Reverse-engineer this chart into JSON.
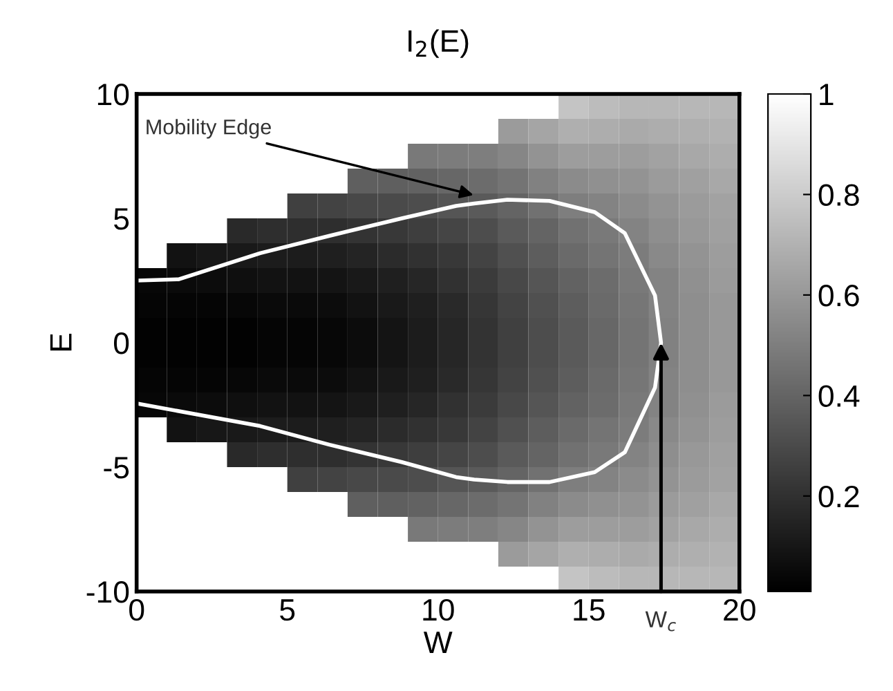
{
  "chart_data": {
    "type": "heatmap",
    "title": "I$_{2}$(E)",
    "xlabel": "W",
    "ylabel": "E",
    "x": [
      0.5,
      1.5,
      2.5,
      3.5,
      4.5,
      5.5,
      6.5,
      7.5,
      8.5,
      9.5,
      10.5,
      11.5,
      12.5,
      13.5,
      14.5,
      15.5,
      16.5,
      17.5,
      18.5,
      19.5
    ],
    "y": [
      9.5,
      8.5,
      7.5,
      6.5,
      5.5,
      4.5,
      3.5,
      2.5,
      1.5,
      0.5,
      -0.5,
      -1.5,
      -2.5,
      -3.5,
      -4.5,
      -5.5,
      -6.5,
      -7.5,
      -8.5,
      -9.5
    ],
    "xlim": [
      0,
      20
    ],
    "ylim": [
      -10,
      10
    ],
    "xticks": [
      0,
      5,
      10,
      15,
      20
    ],
    "yticks": [
      -10,
      -5,
      0,
      5,
      10
    ],
    "clim": [
      0.01,
      1
    ],
    "cticks": [
      0.2,
      0.4,
      0.6,
      0.8,
      1
    ],
    "cells": [
      [
        null,
        null,
        null,
        null,
        null,
        null,
        null,
        null,
        null,
        null,
        null,
        null,
        null,
        null,
        0.77,
        0.74,
        0.72,
        0.72,
        0.72,
        0.72
      ],
      [
        null,
        null,
        null,
        null,
        null,
        null,
        null,
        null,
        null,
        null,
        null,
        null,
        0.61,
        0.65,
        0.69,
        0.68,
        0.67,
        0.68,
        0.69,
        0.7
      ],
      [
        null,
        null,
        null,
        null,
        null,
        null,
        null,
        null,
        null,
        0.48,
        0.49,
        0.5,
        0.53,
        0.58,
        0.62,
        0.62,
        0.62,
        0.64,
        0.66,
        0.68
      ],
      [
        null,
        null,
        null,
        null,
        null,
        null,
        null,
        0.38,
        0.38,
        0.39,
        0.41,
        0.43,
        0.46,
        0.51,
        0.55,
        0.57,
        0.58,
        0.61,
        0.63,
        0.66
      ],
      [
        null,
        null,
        null,
        null,
        null,
        0.26,
        0.27,
        0.29,
        0.3,
        0.31,
        0.34,
        0.36,
        0.4,
        0.45,
        0.5,
        0.52,
        0.55,
        0.58,
        0.61,
        0.64
      ],
      [
        null,
        null,
        null,
        0.17,
        0.19,
        0.19,
        0.19,
        0.21,
        0.23,
        0.25,
        0.28,
        0.31,
        0.36,
        0.4,
        0.45,
        0.48,
        0.52,
        0.56,
        0.6,
        0.63
      ],
      [
        null,
        0.08,
        0.1,
        0.11,
        0.12,
        0.12,
        0.13,
        0.15,
        0.18,
        0.2,
        0.23,
        0.27,
        0.32,
        0.37,
        0.42,
        0.46,
        0.49,
        0.54,
        0.58,
        0.62
      ],
      [
        0.04,
        0.05,
        0.06,
        0.07,
        0.08,
        0.08,
        0.09,
        0.11,
        0.13,
        0.16,
        0.2,
        0.24,
        0.29,
        0.34,
        0.39,
        0.43,
        0.48,
        0.52,
        0.57,
        0.61
      ],
      [
        0.03,
        0.03,
        0.03,
        0.04,
        0.05,
        0.05,
        0.06,
        0.08,
        0.11,
        0.13,
        0.17,
        0.22,
        0.27,
        0.32,
        0.37,
        0.42,
        0.47,
        0.52,
        0.56,
        0.6
      ],
      [
        0.02,
        0.02,
        0.02,
        0.02,
        0.03,
        0.03,
        0.04,
        0.06,
        0.09,
        0.12,
        0.16,
        0.21,
        0.26,
        0.31,
        0.36,
        0.41,
        0.46,
        0.51,
        0.56,
        0.6
      ],
      [
        0.02,
        0.02,
        0.02,
        0.02,
        0.03,
        0.03,
        0.04,
        0.06,
        0.09,
        0.12,
        0.16,
        0.21,
        0.26,
        0.31,
        0.36,
        0.41,
        0.46,
        0.51,
        0.56,
        0.6
      ],
      [
        0.03,
        0.03,
        0.03,
        0.04,
        0.05,
        0.05,
        0.06,
        0.08,
        0.11,
        0.13,
        0.17,
        0.22,
        0.27,
        0.32,
        0.37,
        0.42,
        0.47,
        0.52,
        0.56,
        0.6
      ],
      [
        0.04,
        0.05,
        0.06,
        0.07,
        0.08,
        0.08,
        0.09,
        0.11,
        0.13,
        0.16,
        0.2,
        0.24,
        0.29,
        0.34,
        0.39,
        0.43,
        0.48,
        0.52,
        0.57,
        0.61
      ],
      [
        null,
        0.08,
        0.1,
        0.11,
        0.12,
        0.12,
        0.13,
        0.15,
        0.18,
        0.2,
        0.23,
        0.27,
        0.32,
        0.37,
        0.42,
        0.46,
        0.49,
        0.54,
        0.58,
        0.62
      ],
      [
        null,
        null,
        null,
        0.17,
        0.19,
        0.19,
        0.19,
        0.21,
        0.23,
        0.25,
        0.28,
        0.31,
        0.36,
        0.4,
        0.45,
        0.48,
        0.52,
        0.56,
        0.6,
        0.63
      ],
      [
        null,
        null,
        null,
        null,
        null,
        0.26,
        0.27,
        0.29,
        0.3,
        0.31,
        0.34,
        0.36,
        0.4,
        0.45,
        0.5,
        0.52,
        0.55,
        0.58,
        0.61,
        0.64
      ],
      [
        null,
        null,
        null,
        null,
        null,
        null,
        null,
        0.38,
        0.38,
        0.39,
        0.41,
        0.43,
        0.46,
        0.51,
        0.55,
        0.57,
        0.58,
        0.61,
        0.63,
        0.66
      ],
      [
        null,
        null,
        null,
        null,
        null,
        null,
        null,
        null,
        null,
        0.48,
        0.49,
        0.5,
        0.53,
        0.58,
        0.62,
        0.62,
        0.62,
        0.64,
        0.66,
        0.68
      ],
      [
        null,
        null,
        null,
        null,
        null,
        null,
        null,
        null,
        null,
        null,
        null,
        null,
        0.61,
        0.65,
        0.69,
        0.68,
        0.67,
        0.68,
        0.69,
        0.7
      ],
      [
        null,
        null,
        null,
        null,
        null,
        null,
        null,
        null,
        null,
        null,
        null,
        null,
        null,
        null,
        0.77,
        0.74,
        0.72,
        0.72,
        0.72,
        0.72
      ]
    ],
    "series": [
      {
        "type": "line",
        "color": "#ffffff",
        "x": [
          0.05,
          1.4,
          4.1,
          6.4,
          8.8,
          10.6,
          11.2,
          12.3,
          13.7,
          15.2,
          16.2,
          17.2,
          17.4,
          17.2,
          16.2,
          15.2,
          13.7,
          12.3,
          11.2,
          10.6,
          8.8,
          6.4,
          4.1,
          0.05
        ],
        "values": [
          2.5,
          2.55,
          3.6,
          4.3,
          5.0,
          5.5,
          5.6,
          5.75,
          5.7,
          5.25,
          4.4,
          1.9,
          0,
          -1.8,
          -4.4,
          -5.2,
          -5.6,
          -5.6,
          -5.5,
          -5.4,
          -4.8,
          -4.1,
          -3.35,
          -2.45
        ]
      }
    ],
    "annotations": [
      {
        "text": "Mobility Edge",
        "x": 11.3,
        "y": 5.9
      },
      {
        "text": "W$_{c}$",
        "x": 17.4,
        "y": 0
      }
    ],
    "grid": false,
    "legend": false
  }
}
